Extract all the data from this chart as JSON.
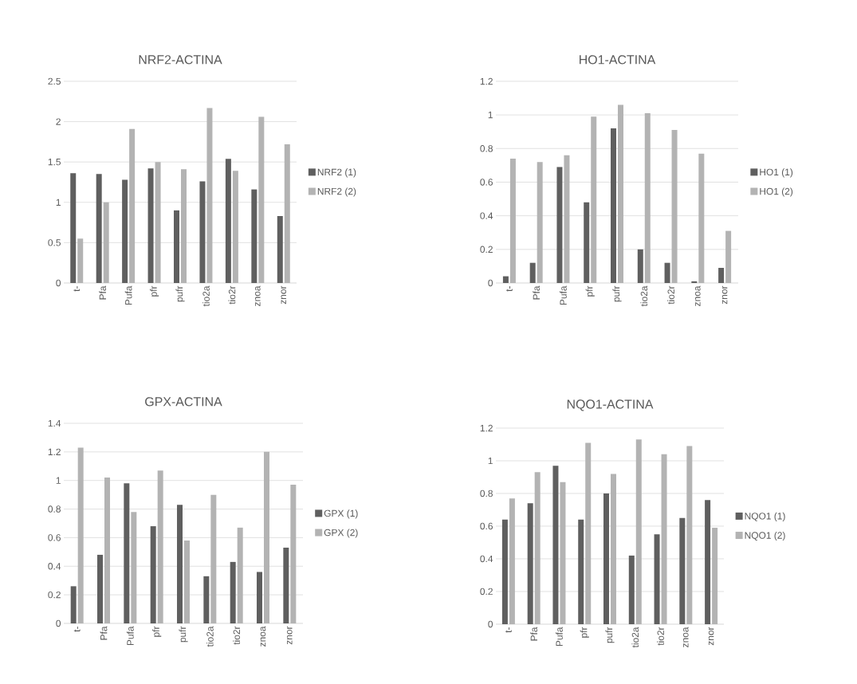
{
  "chart_data": [
    {
      "type": "bar",
      "title": "NRF2-ACTINA",
      "categories": [
        "t-",
        "Pfa",
        "Pufa",
        "pfr",
        "pufr",
        "tio2a",
        "tio2r",
        "znoa",
        "znor"
      ],
      "series": [
        {
          "name": "NRF2 (1)",
          "color": "#5f5f5f",
          "values": [
            1.36,
            1.35,
            1.28,
            1.42,
            0.9,
            1.26,
            1.54,
            1.16,
            0.83
          ]
        },
        {
          "name": "NRF2 (2)",
          "color": "#b3b3b3",
          "values": [
            0.55,
            1.0,
            1.91,
            1.5,
            1.41,
            2.17,
            1.39,
            2.06,
            1.72
          ]
        }
      ],
      "ylim": [
        0,
        2.5
      ],
      "yticks": [
        0,
        0.5,
        1,
        1.5,
        2,
        2.5
      ],
      "grid": "y",
      "legend": "right"
    },
    {
      "type": "bar",
      "title": "HO1-ACTINA",
      "categories": [
        "t-",
        "Pfa",
        "Pufa",
        "pfr",
        "pufr",
        "tio2a",
        "tio2r",
        "znoa",
        "znor"
      ],
      "series": [
        {
          "name": "HO1 (1)",
          "color": "#5f5f5f",
          "values": [
            0.04,
            0.12,
            0.69,
            0.48,
            0.92,
            0.2,
            0.12,
            0.01,
            0.09
          ]
        },
        {
          "name": "HO1 (2)",
          "color": "#b3b3b3",
          "values": [
            0.74,
            0.72,
            0.76,
            0.99,
            1.06,
            1.01,
            0.91,
            0.77,
            0.31
          ]
        }
      ],
      "ylim": [
        0,
        1.2
      ],
      "yticks": [
        0,
        0.2,
        0.4,
        0.6,
        0.8,
        1,
        1.2
      ],
      "grid": "y",
      "legend": "right"
    },
    {
      "type": "bar",
      "title": "GPX-ACTINA",
      "categories": [
        "t-",
        "Pfa",
        "Pufa",
        "pfr",
        "pufr",
        "tio2a",
        "tio2r",
        "znoa",
        "znor"
      ],
      "series": [
        {
          "name": "GPX (1)",
          "color": "#5f5f5f",
          "values": [
            0.26,
            0.48,
            0.98,
            0.68,
            0.83,
            0.33,
            0.43,
            0.36,
            0.53
          ]
        },
        {
          "name": "GPX (2)",
          "color": "#b3b3b3",
          "values": [
            1.23,
            1.02,
            0.78,
            1.07,
            0.58,
            0.9,
            0.67,
            1.2,
            0.97
          ]
        }
      ],
      "ylim": [
        0,
        1.4
      ],
      "yticks": [
        0,
        0.2,
        0.4,
        0.6,
        0.8,
        1,
        1.2,
        1.4
      ],
      "grid": "y",
      "legend": "right"
    },
    {
      "type": "bar",
      "title": "NQO1-ACTINA",
      "categories": [
        "t-",
        "Pfa",
        "Pufa",
        "pfr",
        "pufr",
        "tio2a",
        "tio2r",
        "znoa",
        "znor"
      ],
      "series": [
        {
          "name": "NQO1 (1)",
          "color": "#5f5f5f",
          "values": [
            0.64,
            0.74,
            0.97,
            0.64,
            0.8,
            0.42,
            0.55,
            0.65,
            0.76
          ]
        },
        {
          "name": "NQO1 (2)",
          "color": "#b3b3b3",
          "values": [
            0.77,
            0.93,
            0.87,
            1.11,
            0.92,
            1.13,
            1.04,
            1.09,
            0.59
          ]
        }
      ],
      "ylim": [
        0,
        1.2
      ],
      "yticks": [
        0,
        0.2,
        0.4,
        0.6,
        0.8,
        1,
        1.2
      ],
      "grid": "y",
      "legend": "right"
    }
  ]
}
